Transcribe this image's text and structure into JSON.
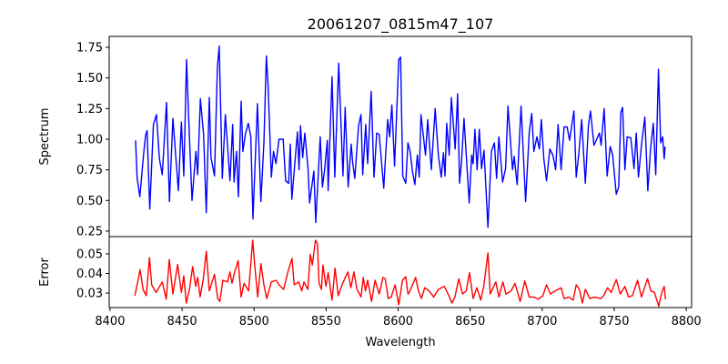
{
  "chart_data": [
    {
      "type": "line",
      "title": "20061207_0815m47_107",
      "xlabel": "Wavelength",
      "ylabel": "Spectrum",
      "xlim": [
        8399.4,
        8803.7
      ],
      "ylim": [
        0.205,
        1.839
      ],
      "xticks": [
        8400,
        8450,
        8500,
        8550,
        8600,
        8650,
        8700,
        8750,
        8800
      ],
      "yticks": [
        0.25,
        0.5,
        0.75,
        1.0,
        1.25,
        1.5,
        1.75
      ],
      "ytick_labels": [
        "0.25",
        "0.50",
        "0.75",
        "1.00",
        "1.25",
        "1.50",
        "1.75"
      ],
      "grid": false,
      "series": [
        {
          "name": "Spectrum",
          "color": "#0000ff",
          "x": [
            8417.7,
            8418.8,
            8420.7,
            8423.2,
            8424.6,
            8425.7,
            8427.6,
            8430.1,
            8432.2,
            8434.3,
            8436.2,
            8439.2,
            8441.2,
            8443.6,
            8447.4,
            8449.5,
            8451.2,
            8453.1,
            8454.5,
            8456.9,
            8459.6,
            8460.8,
            8462.7,
            8464.9,
            8466.8,
            8468.9,
            8470.1,
            8472.5,
            8474.5,
            8475.8,
            8477.9,
            8480.0,
            8481.7,
            8483.2,
            8485.1,
            8486.1,
            8487.8,
            8489.1,
            8491.0,
            8492.2,
            8494.1,
            8496.0,
            8497.7,
            8499.2,
            8502.3,
            8504.7,
            8506.8,
            8508.5,
            8509.7,
            8512.0,
            8513.5,
            8515.2,
            8517.3,
            8520.2,
            8521.9,
            8524.0,
            8525.1,
            8526.2,
            8530.1,
            8531.2,
            8532.2,
            8533.7,
            8535.2,
            8537.5,
            8538.5,
            8541.5,
            8542.8,
            8544.7,
            8545.9,
            8547.4,
            8548.9,
            8550.8,
            8551.4,
            8554.1,
            8556.0,
            8558.7,
            8561.7,
            8563.2,
            8565.3,
            8567.4,
            8568.5,
            8569.9,
            8572.5,
            8574.2,
            8575.4,
            8577.5,
            8578.8,
            8581.3,
            8583.2,
            8585.1,
            8586.8,
            8590.0,
            8592.7,
            8594.1,
            8595.6,
            8597.5,
            8600.4,
            8601.7,
            8603.2,
            8605.3,
            8606.8,
            8608.3,
            8609.9,
            8611.6,
            8613.3,
            8614.6,
            8615.8,
            8619.0,
            8620.5,
            8623.0,
            8625.7,
            8627.9,
            8629.9,
            8631.4,
            8632.5,
            8633.7,
            8635.4,
            8636.9,
            8639.6,
            8641.3,
            8642.6,
            8644.0,
            8645.7,
            8649.3,
            8651.0,
            8652.0,
            8653.3,
            8654.8,
            8656.3,
            8657.9,
            8659.6,
            8662.3,
            8664.7,
            8666.8,
            8668.3,
            8669.9,
            8672.5,
            8674.6,
            8676.2,
            8679.4,
            8680.5,
            8682.6,
            8685.3,
            8688.5,
            8691.0,
            8692.7,
            8694.2,
            8696.3,
            8698.0,
            8699.4,
            8701.1,
            8703.0,
            8705.3,
            8707.4,
            8709.3,
            8711.0,
            8713.1,
            8715.2,
            8717.3,
            8719.0,
            8722.0,
            8723.6,
            8725.3,
            8727.4,
            8729.9,
            8732.1,
            8733.5,
            8735.9,
            8737.8,
            8739.7,
            8740.9,
            8743.0,
            8745.1,
            8747.2,
            8748.9,
            8751.4,
            8753.1,
            8754.6,
            8755.8,
            8757.4,
            8759.0,
            8761.5,
            8763.7,
            8765.3,
            8766.8,
            8768.9,
            8771.2,
            8773.3,
            8775.2,
            8777.1,
            8778.8,
            8780.7,
            8782.2,
            8783.6,
            8784.7,
            8785.3
          ],
          "y": [
            0.99,
            0.68,
            0.53,
            0.87,
            1.03,
            1.07,
            0.43,
            1.12,
            1.2,
            0.84,
            0.71,
            1.3,
            0.49,
            1.17,
            0.58,
            1.14,
            0.7,
            1.65,
            1.2,
            0.5,
            0.9,
            0.71,
            1.33,
            1.04,
            0.4,
            1.34,
            0.85,
            0.7,
            1.59,
            1.76,
            0.68,
            1.2,
            0.92,
            0.66,
            1.12,
            0.65,
            0.9,
            0.53,
            1.31,
            0.9,
            1.05,
            1.13,
            1.02,
            0.35,
            1.29,
            0.49,
            0.97,
            1.68,
            1.44,
            0.69,
            0.9,
            0.8,
            1.0,
            1.0,
            0.66,
            0.64,
            0.96,
            0.51,
            1.06,
            0.75,
            1.11,
            0.85,
            1.05,
            0.75,
            0.48,
            0.74,
            0.32,
            0.75,
            1.02,
            0.61,
            0.75,
            0.99,
            0.58,
            1.51,
            0.69,
            1.62,
            0.7,
            1.26,
            0.61,
            0.96,
            0.8,
            0.68,
            1.11,
            1.2,
            0.71,
            1.12,
            0.8,
            1.39,
            0.69,
            1.05,
            1.04,
            0.6,
            1.16,
            1.02,
            1.28,
            0.78,
            1.65,
            1.67,
            0.7,
            0.64,
            0.97,
            0.9,
            0.74,
            0.63,
            0.87,
            0.69,
            1.2,
            0.87,
            1.16,
            0.75,
            1.25,
            0.87,
            0.69,
            0.89,
            0.7,
            1.13,
            0.87,
            1.34,
            0.92,
            1.37,
            0.64,
            0.82,
            1.17,
            0.48,
            0.87,
            0.8,
            1.08,
            0.75,
            1.08,
            0.76,
            0.91,
            0.28,
            0.9,
            0.97,
            0.68,
            1.02,
            0.65,
            0.76,
            1.27,
            0.75,
            0.86,
            0.63,
            1.27,
            0.49,
            1.06,
            1.21,
            0.9,
            1.02,
            0.92,
            1.16,
            0.84,
            0.66,
            0.92,
            0.87,
            0.75,
            1.12,
            0.75,
            1.1,
            1.1,
            0.99,
            1.23,
            0.69,
            0.87,
            1.16,
            0.64,
            1.12,
            1.23,
            0.95,
            1.0,
            1.05,
            0.95,
            1.25,
            0.7,
            0.94,
            0.87,
            0.55,
            0.61,
            1.22,
            1.26,
            0.75,
            1.02,
            1.01,
            0.76,
            1.05,
            0.69,
            0.95,
            1.18,
            0.58,
            0.92,
            1.13,
            0.71,
            1.57,
            0.97,
            1.02,
            0.84,
            0.94
          ]
        }
      ]
    },
    {
      "type": "line",
      "xlabel": "Wavelength",
      "ylabel": "Error",
      "xlim": [
        8399.4,
        8803.7
      ],
      "ylim": [
        0.0226,
        0.0588
      ],
      "xticks": [
        8400,
        8450,
        8500,
        8550,
        8600,
        8650,
        8700,
        8750,
        8800
      ],
      "xtick_labels": [
        "8400",
        "8450",
        "8500",
        "8550",
        "8600",
        "8650",
        "8700",
        "8750",
        "8800"
      ],
      "yticks": [
        0.03,
        0.04,
        0.05
      ],
      "ytick_labels": [
        "0.03",
        "0.04",
        "0.05"
      ],
      "grid": false,
      "series": [
        {
          "name": "Error",
          "color": "#ff0000",
          "x": [
            8417.2,
            8419.4,
            8420.8,
            8422.9,
            8425.1,
            8427.4,
            8428.9,
            8432.0,
            8436.2,
            8439.0,
            8441.1,
            8443.6,
            8446.9,
            8449.5,
            8451.2,
            8452.9,
            8455.1,
            8457.3,
            8459.4,
            8460.8,
            8462.5,
            8464.6,
            8466.8,
            8468.9,
            8472.5,
            8474.7,
            8476.2,
            8478.3,
            8481.5,
            8483.2,
            8484.6,
            8486.5,
            8488.9,
            8491.0,
            8493.0,
            8496.2,
            8499.0,
            8500.4,
            8502.5,
            8504.7,
            8506.8,
            8508.8,
            8512.0,
            8515.2,
            8517.3,
            8520.5,
            8523.6,
            8526.3,
            8527.8,
            8531.0,
            8533.1,
            8534.6,
            8537.3,
            8539.0,
            8540.4,
            8542.6,
            8544.0,
            8545.1,
            8546.7,
            8547.8,
            8549.9,
            8551.4,
            8554.1,
            8556.2,
            8558.4,
            8561.5,
            8565.1,
            8567.2,
            8569.3,
            8571.4,
            8574.2,
            8575.8,
            8577.3,
            8578.8,
            8581.5,
            8584.0,
            8586.8,
            8589.5,
            8591.0,
            8593.1,
            8595.2,
            8597.9,
            8600.4,
            8603.0,
            8605.3,
            8606.8,
            8607.8,
            8612.1,
            8614.1,
            8616.2,
            8618.4,
            8621.5,
            8624.7,
            8627.9,
            8632.0,
            8635.2,
            8637.3,
            8639.4,
            8642.1,
            8644.7,
            8647.2,
            8649.5,
            8652.0,
            8654.6,
            8657.3,
            8659.4,
            8662.3,
            8663.9,
            8667.8,
            8669.9,
            8672.7,
            8674.8,
            8678.4,
            8681.1,
            8684.7,
            8687.9,
            8691.0,
            8694.2,
            8697.3,
            8700.5,
            8703.0,
            8705.7,
            8708.9,
            8713.1,
            8715.2,
            8718.4,
            8721.5,
            8723.6,
            8725.8,
            8727.9,
            8729.9,
            8733.1,
            8736.3,
            8740.5,
            8742.6,
            8745.3,
            8747.9,
            8751.4,
            8754.2,
            8757.4,
            8759.9,
            8762.6,
            8766.2,
            8768.9,
            8773.1,
            8775.4,
            8777.9,
            8780.9,
            8783.0,
            8784.7,
            8785.5
          ],
          "y": [
            0.0287,
            0.0365,
            0.042,
            0.0319,
            0.0287,
            0.0481,
            0.0342,
            0.0303,
            0.0357,
            0.0269,
            0.0471,
            0.0295,
            0.0446,
            0.0303,
            0.0388,
            0.0249,
            0.0319,
            0.0435,
            0.0334,
            0.038,
            0.028,
            0.0365,
            0.0513,
            0.0311,
            0.0396,
            0.0272,
            0.0257,
            0.0365,
            0.0357,
            0.0408,
            0.035,
            0.0408,
            0.0466,
            0.028,
            0.035,
            0.0311,
            0.057,
            0.0443,
            0.028,
            0.045,
            0.0342,
            0.0272,
            0.0357,
            0.0365,
            0.0342,
            0.0319,
            0.0412,
            0.0477,
            0.0342,
            0.0357,
            0.0311,
            0.0357,
            0.0319,
            0.0497,
            0.0443,
            0.057,
            0.0551,
            0.035,
            0.0319,
            0.0443,
            0.0334,
            0.0404,
            0.0264,
            0.0427,
            0.0287,
            0.035,
            0.0408,
            0.0327,
            0.0408,
            0.0319,
            0.028,
            0.038,
            0.0311,
            0.0365,
            0.0257,
            0.0365,
            0.0295,
            0.038,
            0.0373,
            0.0272,
            0.028,
            0.0342,
            0.0241,
            0.0365,
            0.0384,
            0.0295,
            0.0303,
            0.038,
            0.0311,
            0.0272,
            0.0327,
            0.0311,
            0.028,
            0.0319,
            0.0334,
            0.0287,
            0.0249,
            0.028,
            0.0373,
            0.0295,
            0.0311,
            0.0404,
            0.0272,
            0.0327,
            0.0264,
            0.0334,
            0.0505,
            0.0295,
            0.0357,
            0.028,
            0.0357,
            0.0295,
            0.0311,
            0.035,
            0.0257,
            0.0362,
            0.028,
            0.028,
            0.0269,
            0.0287,
            0.0342,
            0.0295,
            0.0311,
            0.0327,
            0.0272,
            0.028,
            0.0264,
            0.0342,
            0.0319,
            0.0249,
            0.0319,
            0.0272,
            0.028,
            0.0272,
            0.0287,
            0.0327,
            0.0303,
            0.0369,
            0.0295,
            0.0334,
            0.028,
            0.0287,
            0.0365,
            0.028,
            0.0373,
            0.0311,
            0.0303,
            0.0233,
            0.0303,
            0.0334,
            0.0269
          ]
        }
      ]
    }
  ]
}
